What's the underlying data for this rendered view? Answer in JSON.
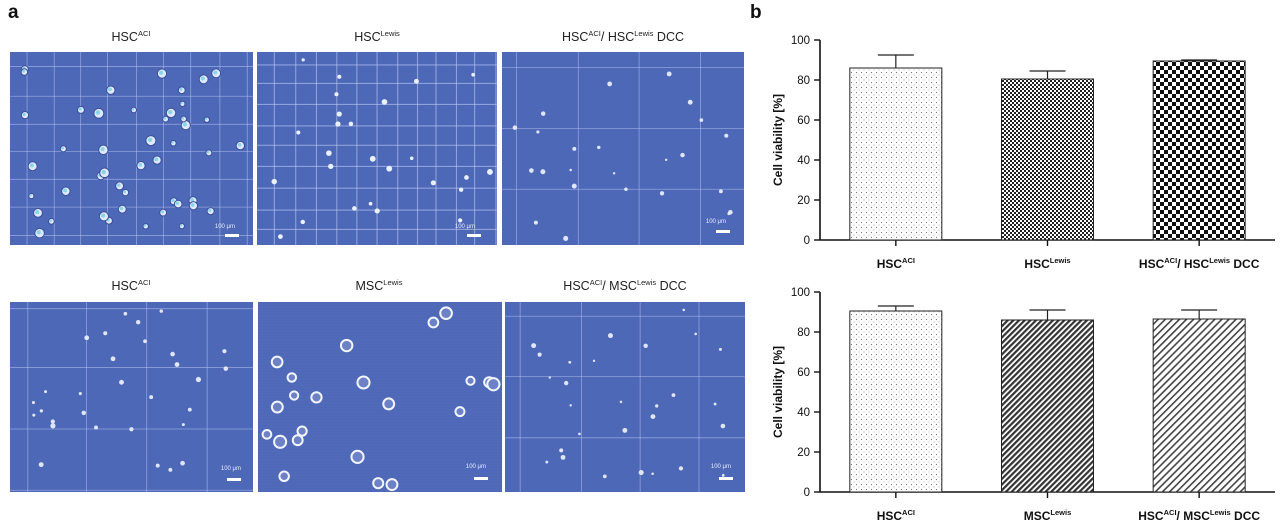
{
  "panel_a": {
    "letter": "a",
    "rows": [
      [
        {
          "base": "HSC",
          "sup": "ACI",
          "base2": "",
          "sup2": "",
          "suffix": "",
          "scale_label": "100 μm",
          "cells": 46,
          "cell_style": "round",
          "grid": "dense",
          "seed": 11
        },
        {
          "base": "HSC",
          "sup": "Lewis",
          "base2": "",
          "sup2": "",
          "suffix": "",
          "scale_label": "100 μm",
          "cells": 26,
          "cell_style": "small",
          "grid": "fine",
          "seed": 23
        },
        {
          "base": "HSC",
          "sup": "ACI",
          "base2": "/ HSC",
          "sup2": "Lewis",
          "suffix": " DCC",
          "scale_label": "100 μm",
          "cells": 24,
          "cell_style": "dot",
          "grid": "sparse",
          "seed": 37
        }
      ],
      [
        {
          "base": "HSC",
          "sup": "ACI",
          "base2": "",
          "sup2": "",
          "suffix": "",
          "scale_label": "100 μm",
          "cells": 30,
          "cell_style": "dot",
          "grid": "sparse",
          "seed": 41
        },
        {
          "base": "MSC",
          "sup": "Lewis",
          "base2": "",
          "sup2": "",
          "suffix": "",
          "scale_label": "100 μm",
          "cells": 22,
          "cell_style": "ring",
          "grid": "lines",
          "seed": 53
        },
        {
          "base": "HSC",
          "sup": "ACI",
          "base2": "/ MSC",
          "sup2": "Lewis",
          "suffix": " DCC",
          "scale_label": "100 μm",
          "cells": 28,
          "cell_style": "dot",
          "grid": "sparse",
          "seed": 67
        }
      ]
    ]
  },
  "panel_b": {
    "letter": "b"
  },
  "colors": {
    "micro_bg": "#4762b4",
    "axis": "#111111",
    "bar_edge": "#222222"
  },
  "chart_data": [
    {
      "type": "bar",
      "title": "",
      "xlabel": "",
      "ylabel": "Cell viability [%]",
      "ylim": [
        0,
        100
      ],
      "yticks": [
        0,
        20,
        40,
        60,
        80,
        100
      ],
      "categories": [
        {
          "base": "HSC",
          "sup": "ACI",
          "base2": "",
          "sup2": "",
          "suffix": ""
        },
        {
          "base": "HSC",
          "sup": "Lewis",
          "base2": "",
          "sup2": "",
          "suffix": ""
        },
        {
          "base": "HSC",
          "sup": "ACI",
          "base2": "/ HSC",
          "sup2": "Lewis",
          "suffix": " DCC"
        }
      ],
      "values": [
        86,
        80.5,
        89.5
      ],
      "errors": [
        6.5,
        4,
        0.5
      ],
      "patterns": [
        "sparse-dots",
        "fine-checker",
        "coarse-checker"
      ]
    },
    {
      "type": "bar",
      "title": "",
      "xlabel": "",
      "ylabel": "Cell viability [%]",
      "ylim": [
        0,
        100
      ],
      "yticks": [
        0,
        20,
        40,
        60,
        80,
        100
      ],
      "categories": [
        {
          "base": "HSC",
          "sup": "ACI",
          "base2": "",
          "sup2": "",
          "suffix": ""
        },
        {
          "base": "MSC",
          "sup": "Lewis",
          "base2": "",
          "sup2": "",
          "suffix": ""
        },
        {
          "base": "HSC",
          "sup": "ACI",
          "base2": "/ MSC",
          "sup2": "Lewis",
          "suffix": " DCC"
        }
      ],
      "values": [
        90.5,
        86,
        86.5
      ],
      "errors": [
        2.5,
        5,
        4.5
      ],
      "patterns": [
        "sparse-dots",
        "diag-dense",
        "diag-light"
      ]
    }
  ]
}
